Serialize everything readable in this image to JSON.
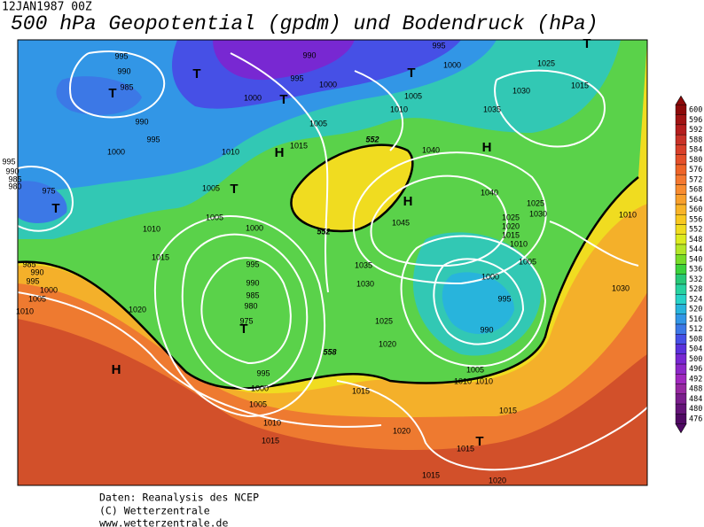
{
  "header": {
    "date": "12JAN1987 00Z",
    "title": "500 hPa Geopotential (gpdm) und Bodendruck (hPa)"
  },
  "legend": {
    "levels": [
      600,
      596,
      592,
      588,
      584,
      580,
      576,
      572,
      568,
      564,
      560,
      556,
      552,
      548,
      544,
      540,
      536,
      532,
      528,
      524,
      520,
      516,
      512,
      508,
      504,
      500,
      496,
      492,
      488,
      484,
      480,
      476
    ],
    "colors": [
      "#8c0a0a",
      "#a01414",
      "#b41e1e",
      "#c83228",
      "#d8402a",
      "#e4502a",
      "#ee6428",
      "#f47830",
      "#f88c30",
      "#f8a02c",
      "#f8b428",
      "#f8c820",
      "#f0dc20",
      "#dceb20",
      "#b4e628",
      "#78dc28",
      "#3cd23c",
      "#28c878",
      "#28d2a0",
      "#28d2c8",
      "#28b4dc",
      "#3296e6",
      "#3c78e6",
      "#4650e6",
      "#5a32dc",
      "#7828d2",
      "#8c28c8",
      "#a028be",
      "#9628a0",
      "#7a1e8c",
      "#641478",
      "#500a64"
    ]
  },
  "map": {
    "pressure_labels": [
      "995",
      "990",
      "985",
      "990",
      "995",
      "1000",
      "995",
      "990",
      "985",
      "980",
      "975",
      "990",
      "995",
      "1000",
      "1000",
      "1005",
      "1015",
      "1010",
      "1005",
      "1005",
      "1000",
      "1010",
      "1015",
      "985",
      "990",
      "995",
      "1000",
      "1005",
      "1010",
      "1020",
      "995",
      "990",
      "985",
      "980",
      "975",
      "995",
      "1000",
      "1005",
      "1010",
      "1015",
      "995",
      "1000",
      "1005",
      "1010",
      "1025",
      "1015",
      "1030",
      "1035",
      "1040",
      "1040",
      "1045",
      "1035",
      "1030",
      "1025",
      "1020",
      "1025",
      "1030",
      "1025",
      "1020",
      "1015",
      "1010",
      "1005",
      "1000",
      "995",
      "990",
      "1005",
      "1010",
      "1010",
      "1015",
      "1020",
      "1015",
      "1015",
      "1015",
      "1020",
      "1010",
      "1030"
    ],
    "contour_labels": [
      "552",
      "552",
      "558"
    ],
    "centers": [
      "T",
      "T",
      "T",
      "T",
      "T",
      "H",
      "T",
      "T",
      "H",
      "H",
      "T",
      "H",
      "T"
    ]
  },
  "footer": {
    "lines": [
      "Daten: Reanalysis des NCEP",
      "(C) Wetterzentrale",
      "www.wetterzentrale.de"
    ]
  }
}
